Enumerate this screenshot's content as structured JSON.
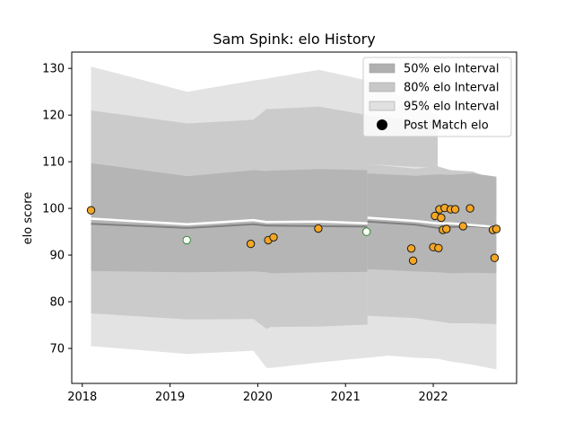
{
  "chart_data": {
    "type": "scatter",
    "title": "Sam Spink: elo History",
    "xlabel": "",
    "ylabel": "elo score",
    "xlim": [
      2017.88,
      2022.95
    ],
    "ylim": [
      62.5,
      133.5
    ],
    "x_ticks": [
      2018,
      2019,
      2020,
      2021,
      2022
    ],
    "x_tick_labels": [
      "2018",
      "2019",
      "2020",
      "2021",
      "2022"
    ],
    "y_ticks": [
      70,
      80,
      90,
      100,
      110,
      120,
      130
    ],
    "y_tick_labels": [
      "70",
      "80",
      "90",
      "100",
      "110",
      "120",
      "130"
    ],
    "grid": false,
    "legend_position": "top-right",
    "legend": [
      {
        "label": "50% elo Interval",
        "color": "#b0b0b0",
        "type": "patch"
      },
      {
        "label": "80% elo Interval",
        "color": "#c8c8c8",
        "type": "patch"
      },
      {
        "label": "95% elo Interval",
        "color": "#e0e0e0",
        "type": "patch"
      },
      {
        "label": "Post Match elo",
        "color": "#000000",
        "type": "marker"
      }
    ],
    "bands_main": {
      "x": [
        2018.1,
        2019.2,
        2019.95,
        2020.1,
        2020.15,
        2020.7,
        2021.25,
        2022.05
      ],
      "mean": [
        96.7,
        95.8,
        96.6,
        96.3,
        96.3,
        96.2,
        96.1,
        95.5
      ],
      "p50_low": [
        86.6,
        86.3,
        86.5,
        86.3,
        86.1,
        86.3,
        86.4,
        86.5
      ],
      "p50_high": [
        109.7,
        106.9,
        108.2,
        108.0,
        108.1,
        108.4,
        108.2,
        107.7
      ],
      "p80_low": [
        77.5,
        76.2,
        76.3,
        74.2,
        74.6,
        74.7,
        75.1,
        75.5
      ],
      "p80_high": [
        121.0,
        118.2,
        119.0,
        121.3,
        121.3,
        121.8,
        120.0,
        118.5
      ],
      "p95_low": [
        70.5,
        68.8,
        69.5,
        65.8,
        65.8,
        67.0,
        68.0,
        69.5
      ],
      "p95_high": [
        130.4,
        125.0,
        127.4,
        127.8,
        128.0,
        129.7,
        127.4,
        120.0
      ]
    },
    "bands_recent": {
      "x": [
        2021.25,
        2021.8,
        2022.05,
        2022.2,
        2022.45,
        2022.72
      ],
      "mean": [
        97.2,
        96.5,
        95.8,
        96.0,
        96.2,
        95.8
      ],
      "p50_low": [
        87.0,
        86.5,
        86.3,
        86.1,
        86.2,
        86.1
      ],
      "p50_high": [
        107.5,
        107.0,
        107.3,
        107.2,
        107.5,
        106.8
      ],
      "p80_low": [
        77.0,
        76.5,
        75.8,
        75.4,
        75.4,
        75.2
      ],
      "p80_high": [
        109.5,
        108.5,
        109.0,
        108.2,
        107.9,
        106.0
      ],
      "p95_low": [
        68.8,
        68.0,
        67.8,
        67.2,
        66.5,
        65.5
      ],
      "p95_high": [
        109.5,
        108.9,
        108.7,
        107.8,
        107.3,
        105.8
      ]
    },
    "post_match_line_main": {
      "x": [
        2018.1,
        2019.2,
        2019.95,
        2020.1,
        2020.7,
        2021.25
      ],
      "y": [
        97.8,
        96.6,
        97.5,
        97.1,
        97.2,
        96.8
      ]
    },
    "post_match_line_recent": {
      "x": [
        2021.25,
        2021.8,
        2022.05,
        2022.2,
        2022.72
      ],
      "y": [
        98.0,
        97.3,
        96.8,
        96.8,
        96.0
      ]
    },
    "points": [
      {
        "x": 2018.1,
        "y": 99.6,
        "color": "#f5a623"
      },
      {
        "x": 2019.19,
        "y": 93.2,
        "color": "#ffffff"
      },
      {
        "x": 2019.92,
        "y": 92.4,
        "color": "#f5a623"
      },
      {
        "x": 2020.12,
        "y": 93.2,
        "color": "#f5a623"
      },
      {
        "x": 2020.18,
        "y": 93.8,
        "color": "#f5a623"
      },
      {
        "x": 2020.69,
        "y": 95.7,
        "color": "#f5a623"
      },
      {
        "x": 2021.24,
        "y": 95.0,
        "color": "#ffffff"
      },
      {
        "x": 2021.75,
        "y": 91.4,
        "color": "#f5a623"
      },
      {
        "x": 2021.77,
        "y": 88.8,
        "color": "#f5a623"
      },
      {
        "x": 2022.0,
        "y": 91.7,
        "color": "#f5a623"
      },
      {
        "x": 2022.02,
        "y": 98.4,
        "color": "#f5a623"
      },
      {
        "x": 2022.06,
        "y": 91.5,
        "color": "#f5a623"
      },
      {
        "x": 2022.07,
        "y": 99.8,
        "color": "#f5a623"
      },
      {
        "x": 2022.09,
        "y": 98.0,
        "color": "#f5a623"
      },
      {
        "x": 2022.11,
        "y": 95.4,
        "color": "#f5a623"
      },
      {
        "x": 2022.13,
        "y": 100.1,
        "color": "#f5a623"
      },
      {
        "x": 2022.15,
        "y": 95.6,
        "color": "#f5a623"
      },
      {
        "x": 2022.2,
        "y": 99.8,
        "color": "#f5a623"
      },
      {
        "x": 2022.25,
        "y": 99.8,
        "color": "#f5a623"
      },
      {
        "x": 2022.34,
        "y": 96.2,
        "color": "#f5a623"
      },
      {
        "x": 2022.42,
        "y": 100.0,
        "color": "#f5a623"
      },
      {
        "x": 2022.68,
        "y": 95.4,
        "color": "#f5a623"
      },
      {
        "x": 2022.7,
        "y": 89.4,
        "color": "#f5a623"
      },
      {
        "x": 2022.72,
        "y": 95.6,
        "color": "#f5a623"
      }
    ]
  }
}
